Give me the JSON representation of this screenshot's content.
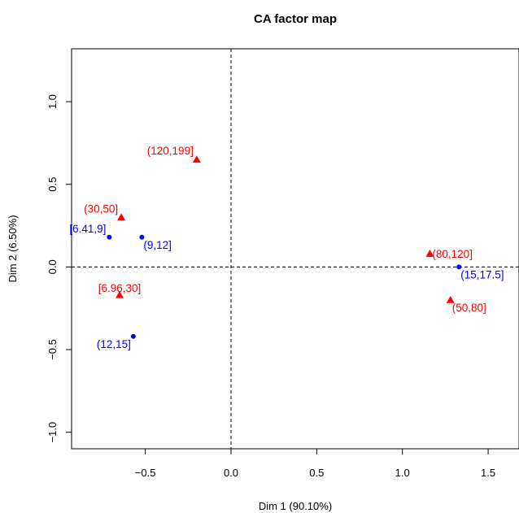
{
  "chart_data": {
    "type": "scatter",
    "title": "CA factor map",
    "xlabel": "Dim 1 (90.10%)",
    "ylabel": "Dim 2 (6.50%)",
    "xlim": [
      -0.93,
      1.68
    ],
    "ylim": [
      -1.1,
      1.32
    ],
    "x_ticks": [
      -0.5,
      0.0,
      0.5,
      1.0,
      1.5
    ],
    "x_tick_labels": [
      "−0.5",
      "0.0",
      "0.5",
      "1.0",
      "1.5"
    ],
    "y_ticks": [
      -1.0,
      -0.5,
      0.0,
      0.5,
      1.0
    ],
    "y_tick_labels": [
      "−1.0",
      "−0.5",
      "0.0",
      "0.5",
      "1.0"
    ],
    "reference_lines": {
      "x": 0,
      "y": 0,
      "style": "dashed"
    },
    "grid": false,
    "colors": {
      "rows": "#0000ff",
      "columns": "#ff0000"
    },
    "series": [
      {
        "marker": "circle",
        "color": "#0000ff",
        "points": [
          {
            "label": "[6.41,9]",
            "x": -0.71,
            "y": 0.18,
            "label_pos": "left-above"
          },
          {
            "label": "(9,12]",
            "x": -0.52,
            "y": 0.18,
            "label_pos": "right-below"
          },
          {
            "label": "(12,15]",
            "x": -0.57,
            "y": -0.42,
            "label_pos": "left-below"
          },
          {
            "label": "(15,17.5]",
            "x": 1.33,
            "y": 0.0,
            "label_pos": "right-below"
          }
        ]
      },
      {
        "marker": "triangle",
        "color": "#ff0000",
        "points": [
          {
            "label": "(120,199]",
            "x": -0.2,
            "y": 0.65,
            "label_pos": "left-above"
          },
          {
            "label": "(30,50]",
            "x": -0.64,
            "y": 0.3,
            "label_pos": "left-above"
          },
          {
            "label": "[6.96,30]",
            "x": -0.65,
            "y": -0.17,
            "label_pos": "center-above"
          },
          {
            "label": "(80,120]",
            "x": 1.16,
            "y": 0.08,
            "label_pos": "right"
          },
          {
            "label": "(50,80]",
            "x": 1.28,
            "y": -0.2,
            "label_pos": "right-below"
          }
        ]
      }
    ]
  }
}
